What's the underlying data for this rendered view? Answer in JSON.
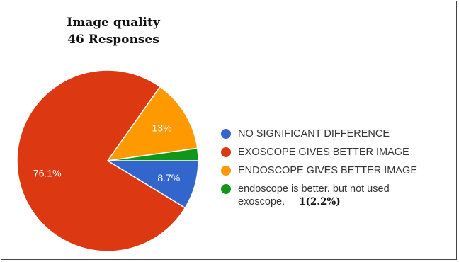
{
  "chart_data": {
    "type": "pie",
    "title": "Image quality",
    "subtitle": "46 Responses",
    "slices": [
      {
        "label": "NO SIGNIFICANT DIFFERENCE",
        "value": 8.7,
        "display": "8.7%",
        "color": "#3366cc"
      },
      {
        "label": "EXOSCOPE GIVES BETTER IMAGE",
        "value": 76.1,
        "display": "76.1%",
        "color": "#dc3912"
      },
      {
        "label": "ENDOSCOPE GIVES BETTER IMAGE",
        "value": 13.0,
        "display": "13%",
        "color": "#ff9900"
      },
      {
        "label": "endoscope is better. but not used exoscope.",
        "value": 2.2,
        "display": "",
        "color": "#109618",
        "note": "1(2.2%)"
      }
    ],
    "legend": "right"
  }
}
